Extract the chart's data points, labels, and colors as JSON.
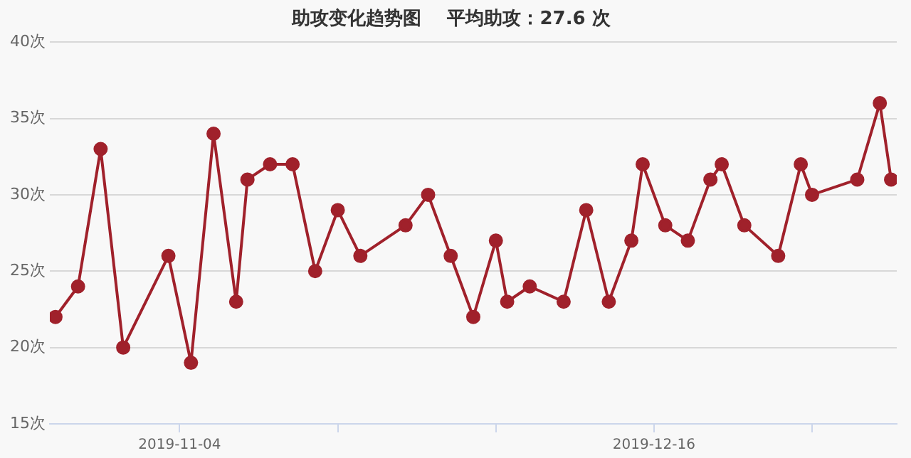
{
  "chart_data": {
    "type": "line",
    "title": "助攻变化趋势图    平均助攻：27.6 次",
    "x": [
      "2019-10-24",
      "2019-10-26",
      "2019-10-28",
      "2019-10-30",
      "2019-11-03",
      "2019-11-05",
      "2019-11-07",
      "2019-11-09",
      "2019-11-10",
      "2019-11-12",
      "2019-11-14",
      "2019-11-16",
      "2019-11-18",
      "2019-11-20",
      "2019-11-24",
      "2019-11-26",
      "2019-11-28",
      "2019-11-30",
      "2019-12-02",
      "2019-12-03",
      "2019-12-05",
      "2019-12-08",
      "2019-12-10",
      "2019-12-12",
      "2019-12-14",
      "2019-12-15",
      "2019-12-17",
      "2019-12-19",
      "2019-12-21",
      "2019-12-22",
      "2019-12-24",
      "2019-12-27",
      "2019-12-29",
      "2019-12-30",
      "2020-01-03",
      "2020-01-05",
      "2020-01-06"
    ],
    "series": [
      {
        "color": "#a0212b",
        "values": [
          22,
          24,
          33,
          20,
          26,
          19,
          34,
          23,
          31,
          32,
          32,
          25,
          29,
          26,
          28,
          30,
          26,
          22,
          27,
          23,
          24,
          23,
          29,
          23,
          27,
          32,
          28,
          27,
          31,
          32,
          28,
          26,
          32,
          30,
          31,
          36,
          31
        ]
      }
    ],
    "xlim": [
      "2019-10-23T12:00",
      "2020-01-06T12:00"
    ],
    "xticks": [
      {
        "value": "2019-11-04",
        "label": "2019-11-04"
      },
      {
        "value": "2019-11-18",
        "label": null
      },
      {
        "value": "2019-12-02",
        "label": null
      },
      {
        "value": "2019-12-16",
        "label": "2019-12-16"
      },
      {
        "value": "2019-12-30",
        "label": null
      }
    ],
    "ylim": [
      15,
      40
    ],
    "yticks": [
      {
        "value": 15,
        "label": "15次"
      },
      {
        "value": 20,
        "label": "20次"
      },
      {
        "value": 25,
        "label": "25次"
      },
      {
        "value": 30,
        "label": "30次"
      },
      {
        "value": 35,
        "label": "35次"
      },
      {
        "value": 40,
        "label": "40次"
      }
    ],
    "grid": "y",
    "marker": "circle",
    "line_style": "solid",
    "legend": false
  }
}
